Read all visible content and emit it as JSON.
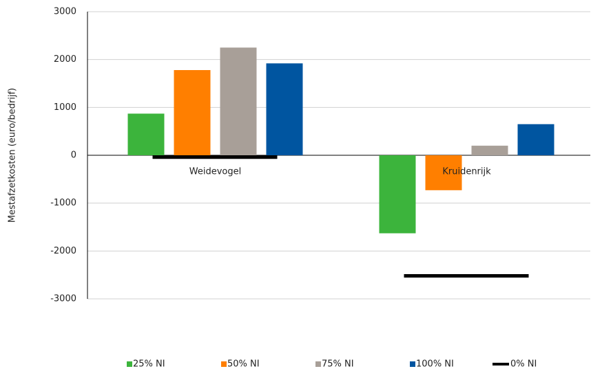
{
  "chart_data": {
    "type": "bar",
    "y_label": "Mestafzetkosten (euro/bedrijf)",
    "categories": [
      "Weidevogel",
      "Kruidenrijk"
    ],
    "series": [
      {
        "name": "25% NI",
        "color": "#3cb43c",
        "values": [
          870,
          -1630
        ]
      },
      {
        "name": "50% NI",
        "color": "#ff7f00",
        "values": [
          1780,
          -730
        ]
      },
      {
        "name": "75% NI",
        "color": "#a89f98",
        "values": [
          2250,
          200
        ]
      },
      {
        "name": "100% NI",
        "color": "#0055a0",
        "values": [
          1920,
          650
        ]
      },
      {
        "name": "0% NI",
        "color": "#000000",
        "type": "line",
        "values": [
          -40,
          -2520
        ]
      }
    ],
    "ylim": [
      -3000,
      3000
    ],
    "yticks": [
      -3000,
      -2000,
      -1000,
      0,
      1000,
      2000,
      3000
    ],
    "grid": true,
    "legend": "bottom"
  }
}
